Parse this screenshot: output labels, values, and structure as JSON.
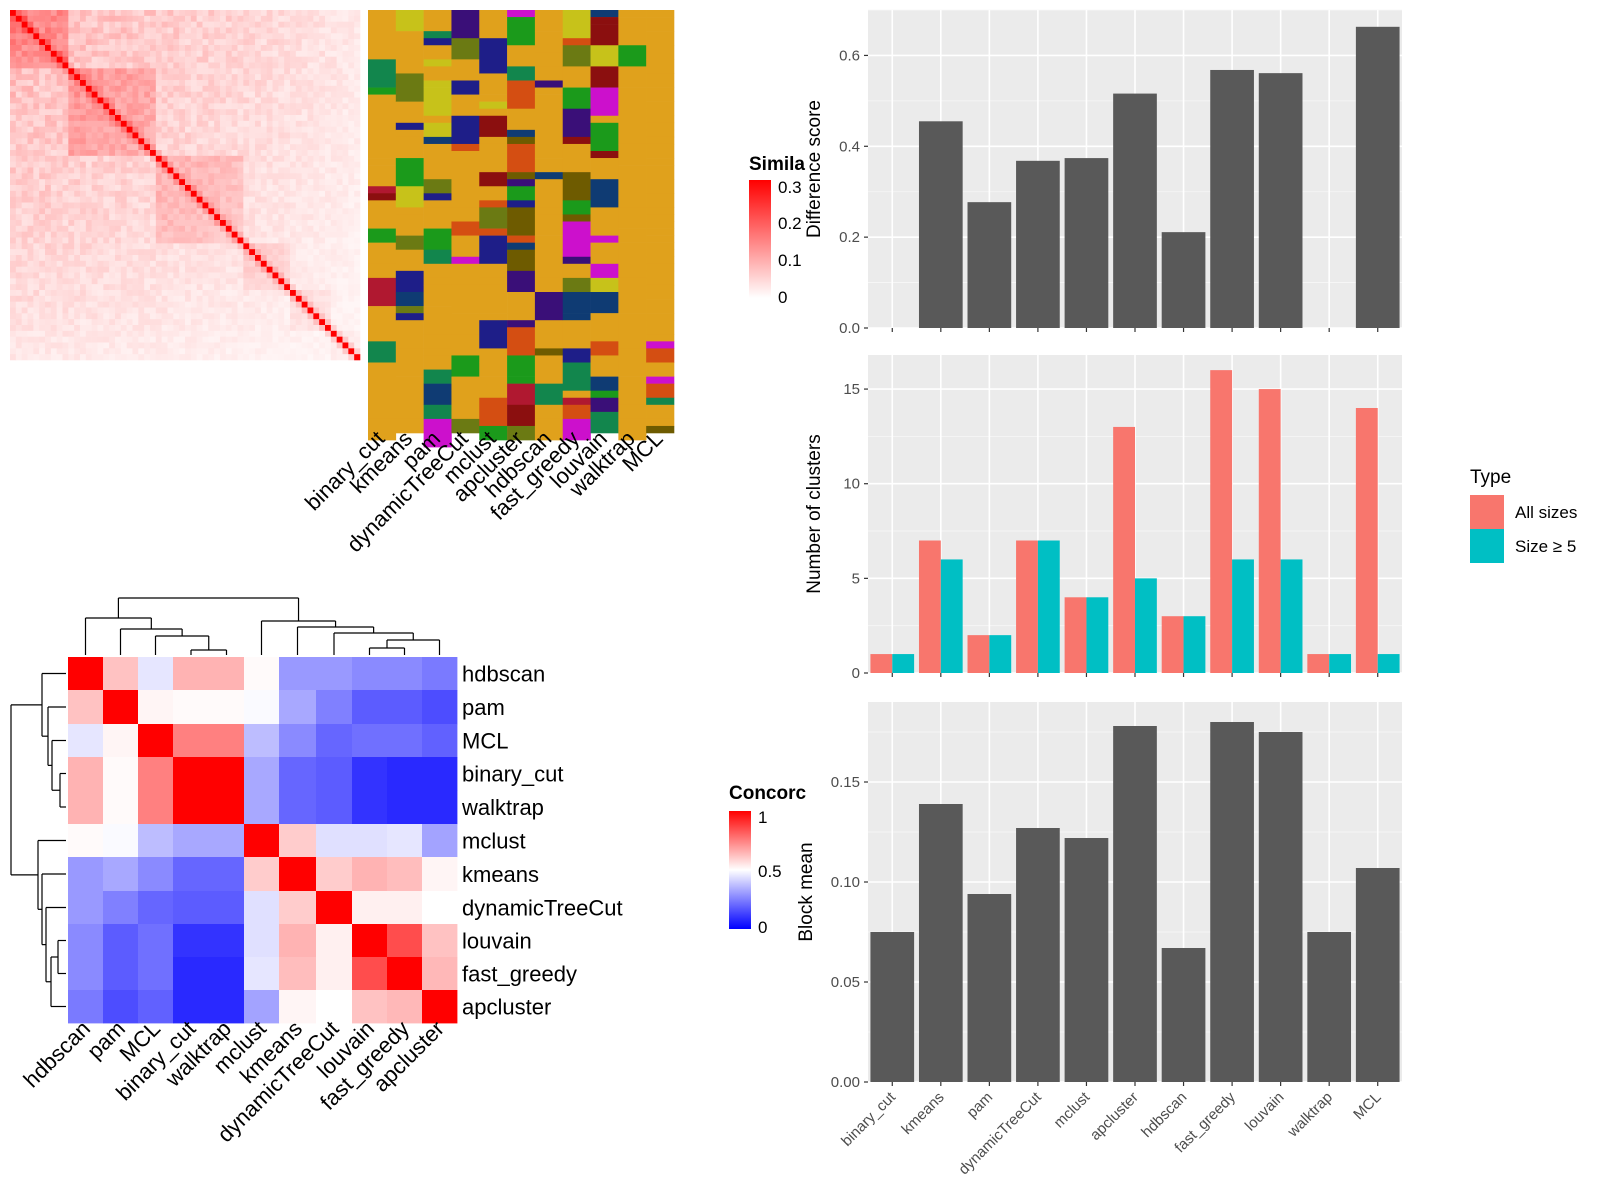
{
  "method_order": [
    "binary_cut",
    "kmeans",
    "pam",
    "dynamicTreeCut",
    "mclust",
    "apcluster",
    "hdbscan",
    "fast_greedy",
    "louvain",
    "walktrap",
    "MCL"
  ],
  "similarity_legend": {
    "title": "Simila",
    "ticks": [
      "0.3",
      "0.2",
      "0.1",
      "0"
    ]
  },
  "concordance_legend": {
    "title": "Concorc",
    "ticks": [
      "1",
      "0.5",
      "0"
    ]
  },
  "chart_data": [
    {
      "type": "heatmap",
      "name": "similarity-matrix",
      "title": "",
      "color_range": [
        0,
        0.3
      ],
      "colors": [
        "#ffffff",
        "#ff0000"
      ]
    },
    {
      "type": "heatmap",
      "name": "cluster-membership",
      "columns": [
        "binary_cut",
        "kmeans",
        "pam",
        "dynamicTreeCut",
        "mclust",
        "apcluster",
        "hdbscan",
        "fast_greedy",
        "louvain",
        "walktrap",
        "MCL"
      ]
    },
    {
      "type": "heatmap",
      "name": "concordance",
      "labels": [
        "hdbscan",
        "pam",
        "MCL",
        "binary_cut",
        "walktrap",
        "mclust",
        "kmeans",
        "dynamicTreeCut",
        "louvain",
        "fast_greedy",
        "apcluster"
      ],
      "values": [
        [
          1.0,
          0.62,
          0.45,
          0.65,
          0.65,
          0.51,
          0.3,
          0.3,
          0.27,
          0.27,
          0.24
        ],
        [
          0.62,
          1.0,
          0.52,
          0.51,
          0.51,
          0.49,
          0.33,
          0.25,
          0.18,
          0.18,
          0.15
        ],
        [
          0.45,
          0.52,
          1.0,
          0.75,
          0.75,
          0.37,
          0.27,
          0.2,
          0.22,
          0.22,
          0.19
        ],
        [
          0.65,
          0.51,
          0.75,
          1.0,
          1.0,
          0.33,
          0.2,
          0.18,
          0.1,
          0.08,
          0.08
        ],
        [
          0.65,
          0.51,
          0.75,
          1.0,
          1.0,
          0.33,
          0.2,
          0.18,
          0.1,
          0.08,
          0.08
        ],
        [
          0.51,
          0.49,
          0.37,
          0.33,
          0.33,
          1.0,
          0.6,
          0.44,
          0.44,
          0.45,
          0.32
        ],
        [
          0.3,
          0.33,
          0.27,
          0.2,
          0.2,
          0.6,
          1.0,
          0.6,
          0.65,
          0.63,
          0.52
        ],
        [
          0.3,
          0.25,
          0.2,
          0.18,
          0.18,
          0.44,
          0.6,
          1.0,
          0.53,
          0.53,
          0.5
        ],
        [
          0.27,
          0.18,
          0.22,
          0.1,
          0.1,
          0.44,
          0.65,
          0.53,
          1.0,
          0.85,
          0.62
        ],
        [
          0.27,
          0.18,
          0.22,
          0.08,
          0.08,
          0.45,
          0.63,
          0.53,
          0.85,
          1.0,
          0.64
        ],
        [
          0.24,
          0.15,
          0.19,
          0.08,
          0.08,
          0.32,
          0.52,
          0.5,
          0.62,
          0.64,
          1.0
        ]
      ],
      "color_range": [
        0,
        1
      ],
      "colors": [
        "#0000ff",
        "#ffffff",
        "#ff0000"
      ]
    },
    {
      "type": "bar",
      "name": "difference-score",
      "categories": [
        "binary_cut",
        "kmeans",
        "pam",
        "dynamicTreeCut",
        "mclust",
        "apcluster",
        "hdbscan",
        "fast_greedy",
        "louvain",
        "walktrap",
        "MCL"
      ],
      "values": [
        0,
        0.455,
        0.277,
        0.368,
        0.374,
        0.516,
        0.211,
        0.568,
        0.561,
        0,
        0.663
      ],
      "ylabel": "Difference score",
      "ylim": [
        0,
        0.7
      ],
      "yticks": [
        "0.0",
        "0.2",
        "0.4",
        "0.6"
      ],
      "color": "#595959"
    },
    {
      "type": "bar",
      "name": "number-of-clusters",
      "categories": [
        "binary_cut",
        "kmeans",
        "pam",
        "dynamicTreeCut",
        "mclust",
        "apcluster",
        "hdbscan",
        "fast_greedy",
        "louvain",
        "walktrap",
        "MCL"
      ],
      "series": [
        {
          "name": "All sizes",
          "values": [
            1,
            7,
            2,
            7,
            4,
            13,
            3,
            16,
            15,
            1,
            14
          ],
          "color": "#f8766d"
        },
        {
          "name": "Size ≥ 5",
          "values": [
            1,
            6,
            2,
            7,
            4,
            5,
            3,
            6,
            6,
            1,
            1
          ],
          "color": "#00bfc4"
        }
      ],
      "ylabel": "Number of clusters",
      "ylim": [
        0,
        16.8
      ],
      "yticks": [
        "0",
        "5",
        "10",
        "15"
      ],
      "legend_title": "Type"
    },
    {
      "type": "bar",
      "name": "block-mean",
      "categories": [
        "binary_cut",
        "kmeans",
        "pam",
        "dynamicTreeCut",
        "mclust",
        "apcluster",
        "hdbscan",
        "fast_greedy",
        "louvain",
        "walktrap",
        "MCL"
      ],
      "values": [
        0.075,
        0.139,
        0.094,
        0.127,
        0.122,
        0.178,
        0.067,
        0.18,
        0.175,
        0.075,
        0.107
      ],
      "ylabel": "Block mean",
      "ylim": [
        0,
        0.19
      ],
      "yticks": [
        "0.00",
        "0.05",
        "0.10",
        "0.15"
      ],
      "color": "#595959"
    }
  ]
}
